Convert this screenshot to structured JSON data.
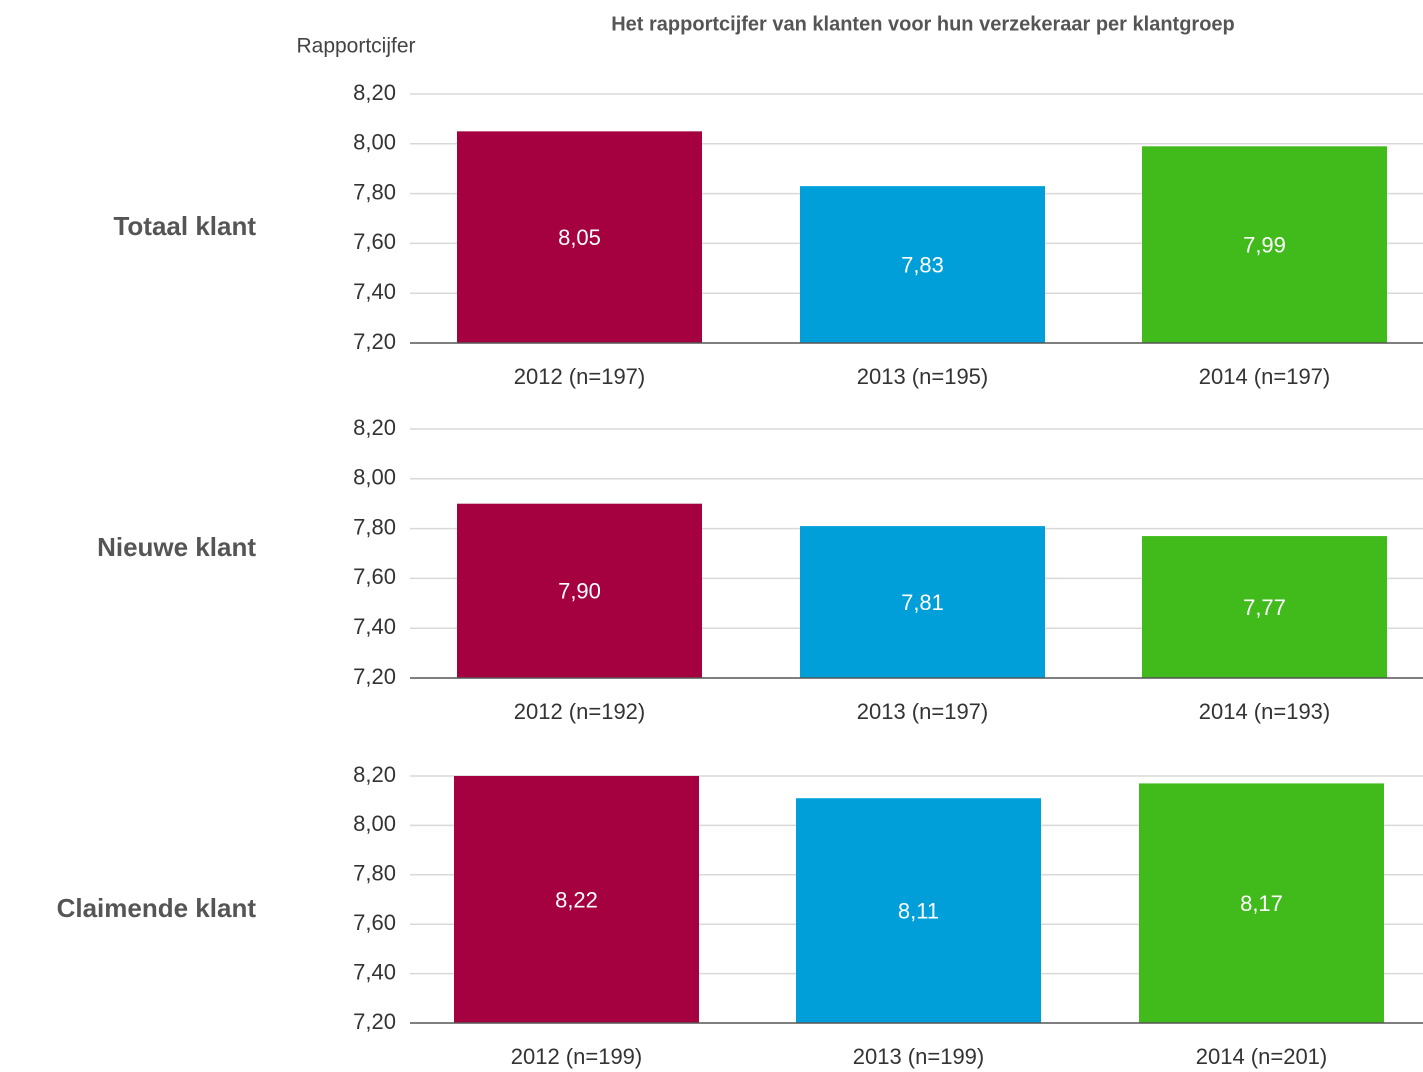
{
  "title": "Het rapportcijfer van klanten voor hun verzekeraar per klantgroep",
  "ylabel": "Rapportcijfer",
  "chart_data": [
    {
      "type": "bar",
      "label": "Totaal klant",
      "categories": [
        "2012 (n=197)",
        "2013 (n=195)",
        "2014 (n=197)"
      ],
      "values": [
        8.05,
        7.83,
        7.99
      ],
      "value_labels": [
        "8,05",
        "7,83",
        "7,99"
      ],
      "colors": [
        "#a5003f",
        "#009fda",
        "#41bb1c"
      ],
      "ylim": [
        7.2,
        8.2
      ],
      "yticks": [
        {
          "value": 7.2,
          "label": "7,20"
        },
        {
          "value": 7.4,
          "label": "7,40"
        },
        {
          "value": 7.6,
          "label": "7,60"
        },
        {
          "value": 7.8,
          "label": "7,80"
        },
        {
          "value": 8.0,
          "label": "8,00"
        },
        {
          "value": 8.2,
          "label": "8,20"
        }
      ],
      "grid": true
    },
    {
      "type": "bar",
      "label": "Nieuwe klant",
      "categories": [
        "2012 (n=192)",
        "2013 (n=197)",
        "2014 (n=193)"
      ],
      "values": [
        7.9,
        7.81,
        7.77
      ],
      "value_labels": [
        "7,90",
        "7,81",
        "7,77"
      ],
      "colors": [
        "#a5003f",
        "#009fda",
        "#41bb1c"
      ],
      "ylim": [
        7.2,
        8.2
      ],
      "yticks": [
        {
          "value": 7.2,
          "label": "7,20"
        },
        {
          "value": 7.4,
          "label": "7,40"
        },
        {
          "value": 7.6,
          "label": "7,60"
        },
        {
          "value": 7.8,
          "label": "7,80"
        },
        {
          "value": 8.0,
          "label": "8,00"
        },
        {
          "value": 8.2,
          "label": "8,20"
        }
      ],
      "grid": true
    },
    {
      "type": "bar",
      "label": "Claimende klant",
      "categories": [
        "2012 (n=199)",
        "2013 (n=199)",
        "2014 (n=201)"
      ],
      "values": [
        8.22,
        8.11,
        8.17
      ],
      "value_labels": [
        "8,22",
        "8,11",
        "8,17"
      ],
      "colors": [
        "#a5003f",
        "#009fda",
        "#41bb1c"
      ],
      "ylim": [
        7.2,
        8.2
      ],
      "yticks": [
        {
          "value": 7.2,
          "label": "7,20"
        },
        {
          "value": 7.4,
          "label": "7,40"
        },
        {
          "value": 7.6,
          "label": "7,60"
        },
        {
          "value": 7.8,
          "label": "7,80"
        },
        {
          "value": 8.0,
          "label": "8,00"
        },
        {
          "value": 8.2,
          "label": "8,20"
        }
      ],
      "grid": true
    }
  ]
}
